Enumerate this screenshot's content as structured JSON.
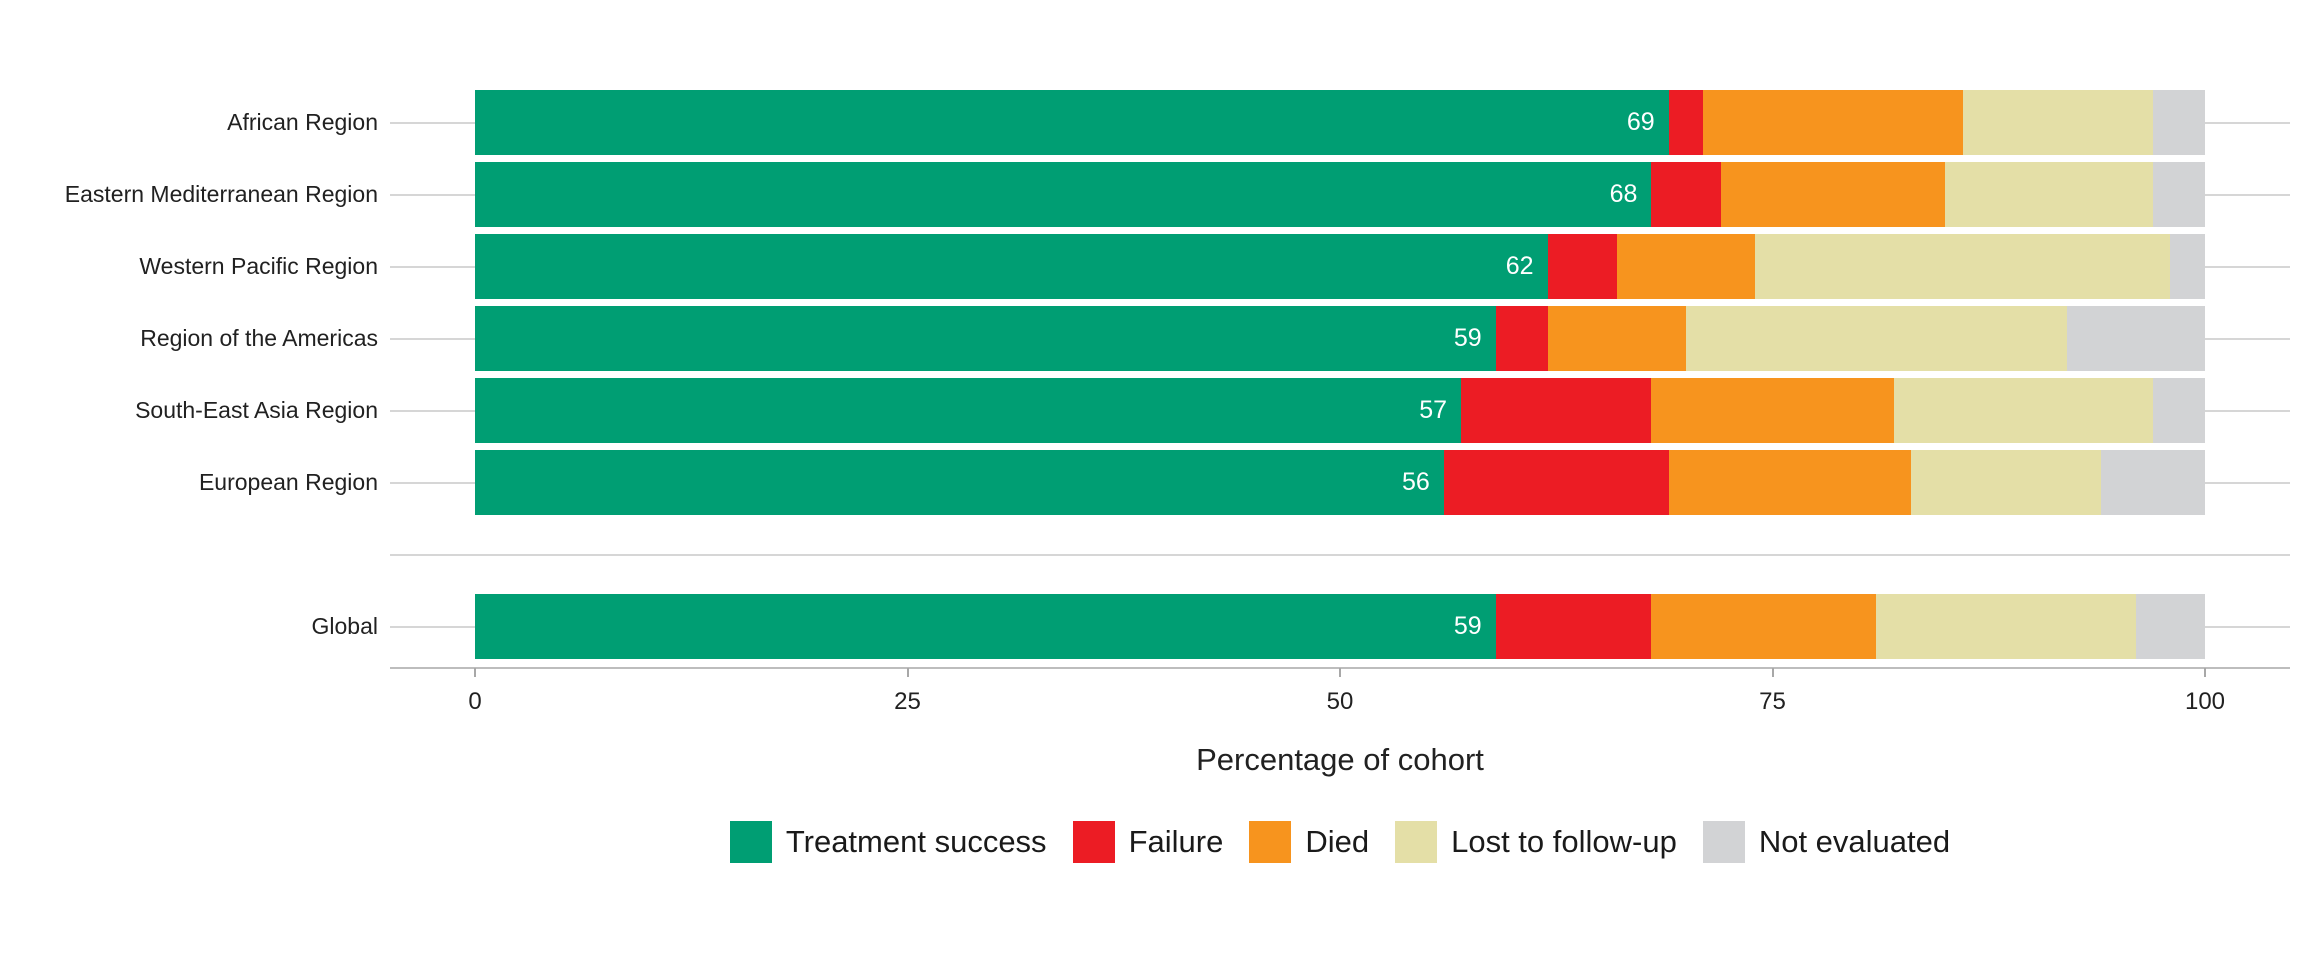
{
  "chart_data": {
    "type": "bar",
    "orientation": "horizontal",
    "stacked": true,
    "title": "",
    "xlabel": "Percentage of cohort",
    "ylabel": "",
    "xlim": [
      0,
      100
    ],
    "x_axis_ticks": [
      0,
      25,
      50,
      75,
      100
    ],
    "grid": "row-leader-lines",
    "legend_position": "bottom-center",
    "series": [
      {
        "name": "Treatment success",
        "color": "#009E73"
      },
      {
        "name": "Failure",
        "color": "#EC1C24"
      },
      {
        "name": "Died",
        "color": "#F7941E"
      },
      {
        "name": "Lost to follow-up",
        "color": "#E4DFA7"
      },
      {
        "name": "Not evaluated",
        "color": "#D2D3D5"
      }
    ],
    "rows": [
      {
        "label": "African Region",
        "panel": "regions",
        "values": [
          69,
          2,
          15,
          11,
          3
        ]
      },
      {
        "label": "Eastern Mediterranean Region",
        "panel": "regions",
        "values": [
          68,
          4,
          13,
          12,
          3
        ]
      },
      {
        "label": "Western Pacific Region",
        "panel": "regions",
        "values": [
          62,
          4,
          8,
          24,
          2
        ]
      },
      {
        "label": "Region of the Americas",
        "panel": "regions",
        "values": [
          59,
          3,
          8,
          22,
          8
        ]
      },
      {
        "label": "South-East Asia Region",
        "panel": "regions",
        "values": [
          57,
          11,
          14,
          15,
          3
        ]
      },
      {
        "label": "European Region",
        "panel": "regions",
        "values": [
          56,
          13,
          14,
          11,
          6
        ]
      },
      {
        "label": "Global",
        "panel": "global",
        "values": [
          59,
          9,
          13,
          15,
          4
        ]
      }
    ],
    "bar_value_labels": [
      69,
      68,
      62,
      59,
      57,
      56,
      59
    ],
    "value_label_series": "Treatment success"
  },
  "colors": {
    "background": "#ffffff",
    "grid_line": "#d6d6d6",
    "axis_line": "#bdbdbd",
    "tick_mark": "#a8a8a8",
    "text": "#212121",
    "bar_value_text": "#ffffff"
  }
}
